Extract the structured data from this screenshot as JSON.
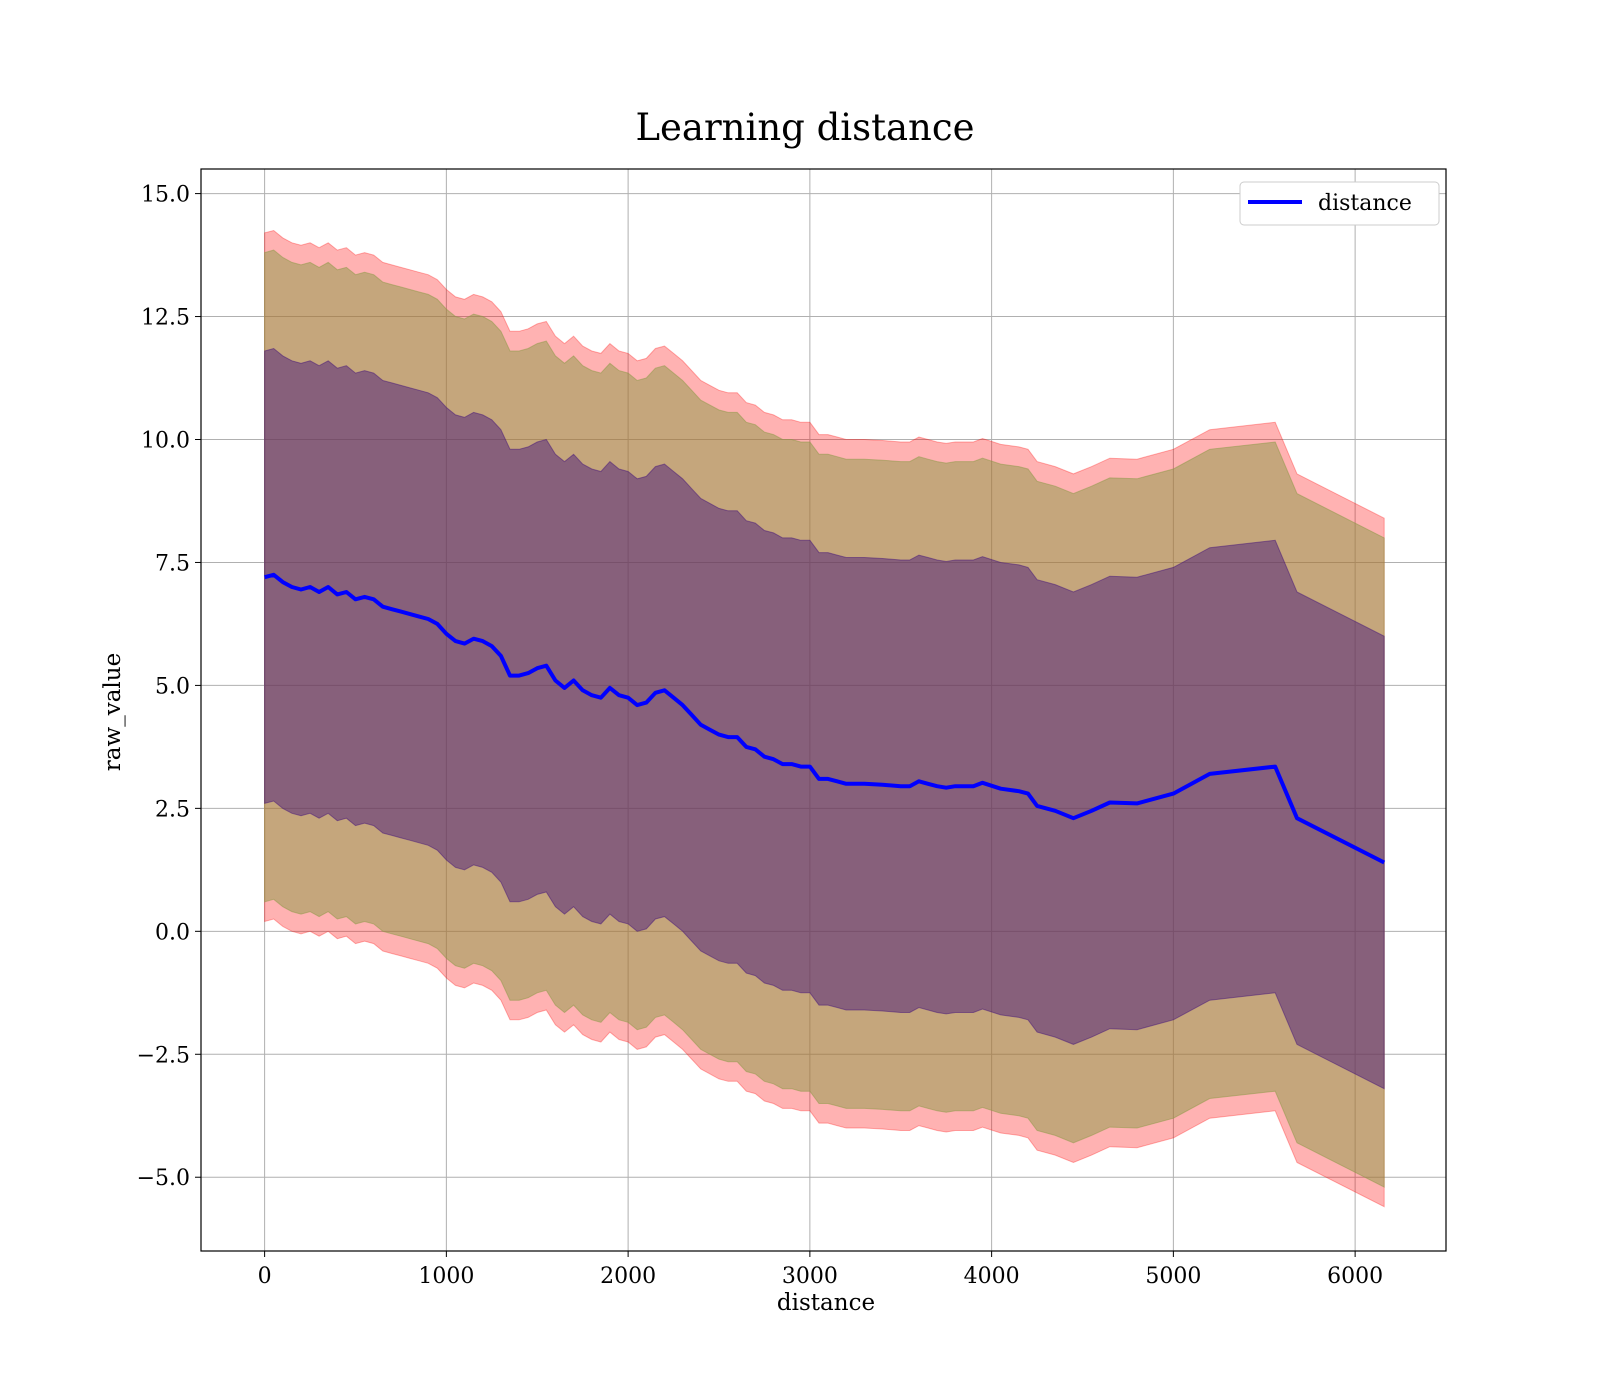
{
  "chart_data": {
    "type": "line",
    "title": "Learning distance",
    "xlabel": "distance",
    "ylabel": "raw_value",
    "xlim": [
      -350,
      6500
    ],
    "ylim": [
      -6.5,
      15.5
    ],
    "xticks": [
      0,
      1000,
      2000,
      3000,
      4000,
      5000,
      6000
    ],
    "xtick_labels": [
      "0",
      "1000",
      "2000",
      "3000",
      "4000",
      "5000",
      "6000"
    ],
    "yticks": [
      -5.0,
      -2.5,
      0.0,
      2.5,
      5.0,
      7.5,
      10.0,
      12.5,
      15.0
    ],
    "ytick_labels": [
      "−5.0",
      "−2.5",
      "0.0",
      "2.5",
      "5.0",
      "7.5",
      "10.0",
      "12.5",
      "15.0"
    ],
    "grid": true,
    "legend": {
      "position": "top-right",
      "entries": [
        "distance"
      ]
    },
    "colors": {
      "line": "#0000ff",
      "outer_band": "#ff0000",
      "middle_band": "#8b9a46",
      "inner_band": "#3b0b7a"
    },
    "bands": [
      {
        "label": "outer",
        "offset": 7.0
      },
      {
        "label": "middle",
        "offset": 6.6
      },
      {
        "label": "inner",
        "offset": 4.6
      }
    ],
    "series": [
      {
        "name": "distance",
        "x": [
          0,
          50,
          100,
          150,
          200,
          250,
          300,
          350,
          400,
          450,
          500,
          550,
          600,
          650,
          700,
          750,
          800,
          850,
          900,
          950,
          1000,
          1050,
          1100,
          1150,
          1200,
          1250,
          1300,
          1350,
          1400,
          1450,
          1500,
          1550,
          1600,
          1650,
          1700,
          1750,
          1800,
          1850,
          1900,
          1950,
          2000,
          2050,
          2100,
          2150,
          2200,
          2250,
          2300,
          2350,
          2400,
          2450,
          2500,
          2550,
          2600,
          2650,
          2700,
          2750,
          2800,
          2850,
          2900,
          2950,
          3000,
          3050,
          3100,
          3150,
          3200,
          3300,
          3400,
          3500,
          3550,
          3600,
          3650,
          3700,
          3750,
          3800,
          3900,
          3950,
          4050,
          4150,
          4200,
          4250,
          4350,
          4450,
          4550,
          4650,
          4800,
          5000,
          5200,
          5560,
          5680,
          6160
        ],
        "y": [
          7.2,
          7.25,
          7.1,
          7.0,
          6.95,
          7.0,
          6.9,
          7.0,
          6.85,
          6.9,
          6.75,
          6.8,
          6.75,
          6.6,
          6.55,
          6.5,
          6.45,
          6.4,
          6.35,
          6.25,
          6.05,
          5.9,
          5.85,
          5.95,
          5.9,
          5.8,
          5.6,
          5.2,
          5.2,
          5.25,
          5.35,
          5.4,
          5.1,
          4.95,
          5.1,
          4.9,
          4.8,
          4.75,
          4.95,
          4.8,
          4.75,
          4.6,
          4.65,
          4.85,
          4.9,
          4.75,
          4.6,
          4.4,
          4.2,
          4.1,
          4.0,
          3.95,
          3.95,
          3.75,
          3.7,
          3.55,
          3.5,
          3.4,
          3.4,
          3.35,
          3.35,
          3.1,
          3.1,
          3.05,
          3.0,
          3.0,
          2.98,
          2.95,
          2.95,
          3.05,
          3.0,
          2.95,
          2.92,
          2.95,
          2.95,
          3.02,
          2.9,
          2.85,
          2.8,
          2.55,
          2.45,
          2.3,
          2.45,
          2.62,
          2.6,
          2.8,
          3.2,
          3.35,
          2.3,
          1.4
        ]
      }
    ]
  }
}
